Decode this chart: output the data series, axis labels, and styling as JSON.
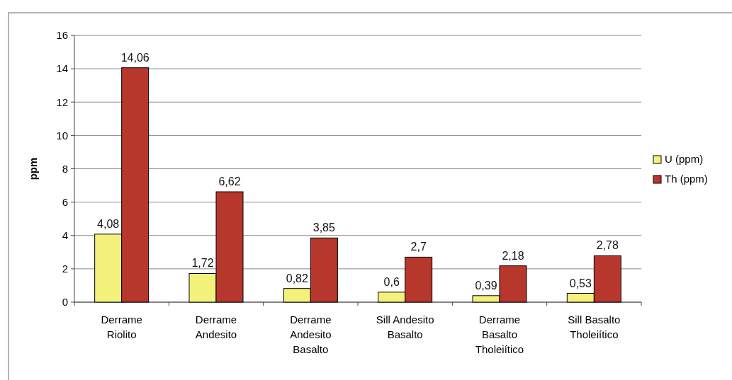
{
  "chart_data": {
    "type": "bar",
    "ylabel": "ppm",
    "categories": [
      "Derrame Riolito",
      "Derrame Andesito",
      "Derrame Andesito Basalto",
      "Sill Andesito Basalto",
      "Derrame Basalto Tholeiítico",
      "Sill Basalto Tholeiítico"
    ],
    "series": [
      {
        "name": "U (ppm)",
        "color": "#f4f07c",
        "values": [
          4.08,
          1.72,
          0.82,
          0.6,
          0.39,
          0.53
        ],
        "value_labels": [
          "4,08",
          "1,72",
          "0,82",
          "0,6",
          "0,39",
          "0,53"
        ]
      },
      {
        "name": "Th (ppm)",
        "color": "#b8372c",
        "values": [
          14.06,
          6.62,
          3.85,
          2.7,
          2.18,
          2.78
        ],
        "value_labels": [
          "14,06",
          "6,62",
          "3,85",
          "2,7",
          "2,18",
          "2,78"
        ]
      }
    ],
    "ylim": [
      0,
      16
    ],
    "yticks": [
      0,
      2,
      4,
      6,
      8,
      10,
      12,
      14,
      16
    ],
    "grid": "y",
    "legend": "right"
  }
}
